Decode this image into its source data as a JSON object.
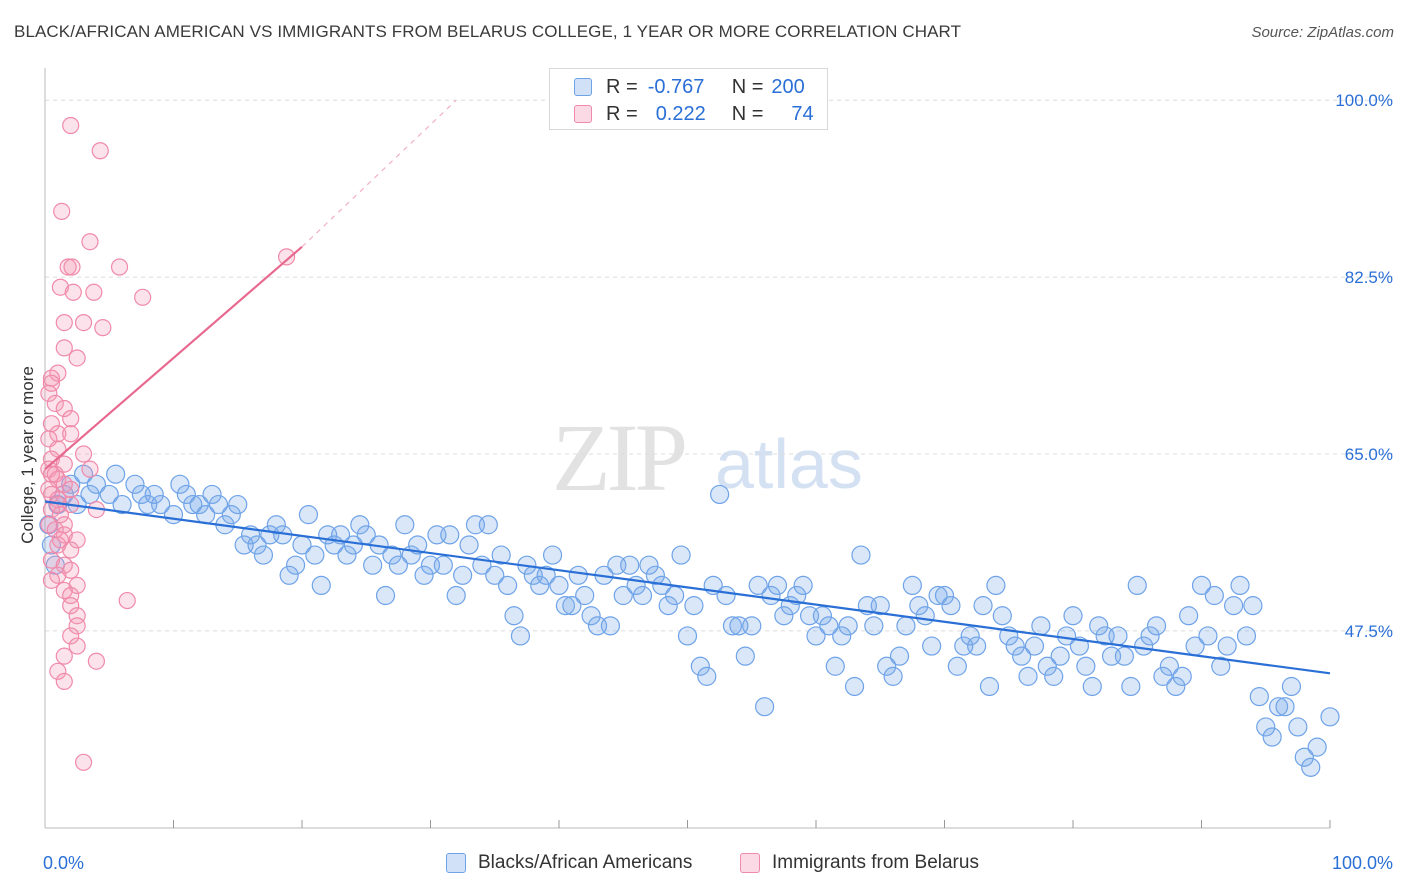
{
  "title": "BLACK/AFRICAN AMERICAN VS IMMIGRANTS FROM BELARUS COLLEGE, 1 YEAR OR MORE CORRELATION CHART",
  "source": "Source: ZipAtlas.com",
  "watermark": {
    "zip": "ZIP",
    "atlas": "atlas"
  },
  "colors": {
    "blue": "#6fa3e8",
    "blue_fill": "rgba(120,170,235,0.28)",
    "blue_line": "#2a6fd6",
    "pink": "#f08aaa",
    "pink_fill": "rgba(244,150,180,0.28)",
    "pink_line": "#e8698f",
    "axis_label": "#2a6fd6",
    "grid": "#dcdcdc"
  },
  "legend_top": {
    "rows": [
      {
        "r_label": "R =",
        "r_value": "-0.767",
        "n_label": "N =",
        "n_value": "200"
      },
      {
        "r_label": "R =",
        "r_value": "0.222",
        "n_label": "N =",
        "n_value": "74"
      }
    ]
  },
  "legend_bottom": [
    "Blacks/African Americans",
    "Immigrants from Belarus"
  ],
  "chart_data": {
    "type": "scatter",
    "title": "BLACK/AFRICAN AMERICAN VS IMMIGRANTS FROM BELARUS COLLEGE, 1 YEAR OR MORE CORRELATION CHART",
    "xlabel": "",
    "ylabel": "College, 1 year or more",
    "xlim": [
      0,
      100
    ],
    "ylim": [
      28,
      102
    ],
    "x_tick_labels": [
      "0.0%",
      "100.0%"
    ],
    "y_ticks": [
      47.5,
      65.0,
      82.5,
      100.0
    ],
    "y_tick_labels": [
      "47.5%",
      "65.0%",
      "82.5%",
      "100.0%"
    ],
    "grid": "horizontal dashed",
    "legend_position": "top-center",
    "series": [
      {
        "name": "Blacks/African Americans",
        "R": -0.767,
        "N": 200,
        "trend": [
          [
            0,
            60.3
          ],
          [
            100,
            43.3
          ]
        ],
        "points": [
          [
            0.3,
            58
          ],
          [
            0.5,
            56
          ],
          [
            0.8,
            54
          ],
          [
            1.0,
            60
          ],
          [
            1.5,
            61
          ],
          [
            2.0,
            62
          ],
          [
            2.5,
            60
          ],
          [
            3,
            63
          ],
          [
            3.5,
            61
          ],
          [
            4,
            62
          ],
          [
            5,
            61
          ],
          [
            5.5,
            63
          ],
          [
            6,
            60
          ],
          [
            7,
            62
          ],
          [
            7.5,
            61
          ],
          [
            8,
            60
          ],
          [
            8.5,
            61
          ],
          [
            9,
            60
          ],
          [
            10,
            59
          ],
          [
            10.5,
            62
          ],
          [
            11,
            61
          ],
          [
            11.5,
            60
          ],
          [
            12,
            60
          ],
          [
            12.5,
            59
          ],
          [
            13,
            61
          ],
          [
            13.5,
            60
          ],
          [
            14,
            58
          ],
          [
            14.5,
            59
          ],
          [
            15,
            60
          ],
          [
            15.5,
            56
          ],
          [
            16,
            57
          ],
          [
            16.5,
            56
          ],
          [
            17,
            55
          ],
          [
            17.5,
            57
          ],
          [
            18,
            58
          ],
          [
            18.5,
            57
          ],
          [
            19,
            53
          ],
          [
            19.5,
            54
          ],
          [
            20,
            56
          ],
          [
            20.5,
            59
          ],
          [
            21,
            55
          ],
          [
            21.5,
            52
          ],
          [
            22,
            57
          ],
          [
            22.5,
            56
          ],
          [
            23,
            57
          ],
          [
            23.5,
            55
          ],
          [
            24,
            56
          ],
          [
            24.5,
            58
          ],
          [
            25,
            57
          ],
          [
            25.5,
            54
          ],
          [
            26,
            56
          ],
          [
            26.5,
            51
          ],
          [
            27,
            55
          ],
          [
            27.5,
            54
          ],
          [
            28,
            58
          ],
          [
            28.5,
            55
          ],
          [
            29,
            56
          ],
          [
            29.5,
            53
          ],
          [
            30,
            54
          ],
          [
            30.5,
            57
          ],
          [
            31,
            54
          ],
          [
            31.5,
            57
          ],
          [
            32,
            51
          ],
          [
            32.5,
            53
          ],
          [
            33,
            56
          ],
          [
            33.5,
            58
          ],
          [
            34,
            54
          ],
          [
            34.5,
            58
          ],
          [
            35,
            53
          ],
          [
            35.5,
            55
          ],
          [
            36,
            52
          ],
          [
            36.5,
            49
          ],
          [
            37,
            47
          ],
          [
            37.5,
            54
          ],
          [
            38,
            53
          ],
          [
            38.5,
            52
          ],
          [
            39,
            53
          ],
          [
            39.5,
            55
          ],
          [
            40,
            52
          ],
          [
            40.5,
            50
          ],
          [
            41,
            50
          ],
          [
            41.5,
            53
          ],
          [
            42,
            51
          ],
          [
            42.5,
            49
          ],
          [
            43,
            48
          ],
          [
            43.5,
            53
          ],
          [
            44,
            48
          ],
          [
            44.5,
            54
          ],
          [
            45,
            51
          ],
          [
            45.5,
            54
          ],
          [
            46,
            52
          ],
          [
            46.5,
            51
          ],
          [
            47,
            54
          ],
          [
            47.5,
            53
          ],
          [
            48,
            52
          ],
          [
            48.5,
            50
          ],
          [
            49,
            51
          ],
          [
            49.5,
            55
          ],
          [
            50,
            47
          ],
          [
            50.5,
            50
          ],
          [
            51,
            44
          ],
          [
            51.5,
            43
          ],
          [
            52,
            52
          ],
          [
            52.5,
            61
          ],
          [
            53,
            51
          ],
          [
            53.5,
            48
          ],
          [
            54,
            48
          ],
          [
            54.5,
            45
          ],
          [
            55,
            48
          ],
          [
            55.5,
            52
          ],
          [
            56,
            40
          ],
          [
            56.5,
            51
          ],
          [
            57,
            52
          ],
          [
            57.5,
            49
          ],
          [
            58,
            50
          ],
          [
            58.5,
            51
          ],
          [
            59,
            52
          ],
          [
            59.5,
            49
          ],
          [
            60,
            47
          ],
          [
            60.5,
            49
          ],
          [
            61,
            48
          ],
          [
            61.5,
            44
          ],
          [
            62,
            47
          ],
          [
            62.5,
            48
          ],
          [
            63,
            42
          ],
          [
            63.5,
            55
          ],
          [
            64,
            50
          ],
          [
            64.5,
            48
          ],
          [
            65,
            50
          ],
          [
            65.5,
            44
          ],
          [
            66,
            43
          ],
          [
            66.5,
            45
          ],
          [
            67,
            48
          ],
          [
            67.5,
            52
          ],
          [
            68,
            50
          ],
          [
            68.5,
            49
          ],
          [
            69,
            46
          ],
          [
            69.5,
            51
          ],
          [
            70,
            51
          ],
          [
            70.5,
            50
          ],
          [
            71,
            44
          ],
          [
            71.5,
            46
          ],
          [
            72,
            47
          ],
          [
            72.5,
            46
          ],
          [
            73,
            50
          ],
          [
            73.5,
            42
          ],
          [
            74,
            52
          ],
          [
            74.5,
            49
          ],
          [
            75,
            47
          ],
          [
            75.5,
            46
          ],
          [
            76,
            45
          ],
          [
            76.5,
            43
          ],
          [
            77,
            46
          ],
          [
            77.5,
            48
          ],
          [
            78,
            44
          ],
          [
            78.5,
            43
          ],
          [
            79,
            45
          ],
          [
            79.5,
            47
          ],
          [
            80,
            49
          ],
          [
            80.5,
            46
          ],
          [
            81,
            44
          ],
          [
            81.5,
            42
          ],
          [
            82,
            48
          ],
          [
            82.5,
            47
          ],
          [
            83,
            45
          ],
          [
            83.5,
            47
          ],
          [
            84,
            45
          ],
          [
            84.5,
            42
          ],
          [
            85,
            52
          ],
          [
            85.5,
            46
          ],
          [
            86,
            47
          ],
          [
            86.5,
            48
          ],
          [
            87,
            43
          ],
          [
            87.5,
            44
          ],
          [
            88,
            42
          ],
          [
            88.5,
            43
          ],
          [
            89,
            49
          ],
          [
            89.5,
            46
          ],
          [
            90,
            52
          ],
          [
            90.5,
            47
          ],
          [
            91,
            51
          ],
          [
            91.5,
            44
          ],
          [
            92,
            46
          ],
          [
            92.5,
            50
          ],
          [
            93,
            52
          ],
          [
            93.5,
            47
          ],
          [
            94,
            50
          ],
          [
            94.5,
            41
          ],
          [
            95,
            38
          ],
          [
            95.5,
            37
          ],
          [
            96,
            40
          ],
          [
            96.5,
            40
          ],
          [
            97,
            42
          ],
          [
            97.5,
            38
          ],
          [
            98,
            35
          ],
          [
            98.5,
            34
          ],
          [
            99,
            36
          ],
          [
            100,
            39
          ]
        ]
      },
      {
        "name": "Immigrants from Belarus",
        "R": 0.222,
        "N": 74,
        "trend": [
          [
            0,
            63.5
          ],
          [
            20,
            85.5
          ]
        ],
        "trend_dashed_extension": [
          [
            20,
            85.5
          ],
          [
            32,
            100
          ]
        ],
        "points": [
          [
            2.0,
            97.5
          ],
          [
            4.3,
            95.0
          ],
          [
            1.3,
            89.0
          ],
          [
            3.5,
            86.0
          ],
          [
            1.8,
            83.5
          ],
          [
            2.1,
            83.5
          ],
          [
            5.8,
            83.5
          ],
          [
            1.2,
            81.5
          ],
          [
            2.2,
            81.0
          ],
          [
            3.8,
            81.0
          ],
          [
            7.6,
            80.5
          ],
          [
            1.5,
            78.0
          ],
          [
            3.0,
            78.0
          ],
          [
            4.5,
            77.5
          ],
          [
            1.5,
            75.5
          ],
          [
            2.5,
            74.5
          ],
          [
            1.0,
            73.0
          ],
          [
            0.5,
            72.0
          ],
          [
            0.3,
            71.0
          ],
          [
            0.8,
            70.0
          ],
          [
            1.5,
            69.5
          ],
          [
            2.0,
            68.5
          ],
          [
            0.5,
            68.0
          ],
          [
            1.0,
            67.0
          ],
          [
            2.0,
            67.0
          ],
          [
            0.3,
            66.5
          ],
          [
            1.0,
            65.5
          ],
          [
            3.0,
            65.0
          ],
          [
            0.5,
            64.5
          ],
          [
            1.5,
            64.0
          ],
          [
            0.3,
            63.5
          ],
          [
            0.5,
            63.0
          ],
          [
            1.0,
            62.5
          ],
          [
            1.5,
            62.0
          ],
          [
            0.3,
            61.5
          ],
          [
            0.5,
            61.0
          ],
          [
            1.0,
            60.5
          ],
          [
            2.0,
            60.0
          ],
          [
            0.5,
            59.5
          ],
          [
            1.2,
            59.0
          ],
          [
            0.3,
            58.0
          ],
          [
            0.8,
            57.5
          ],
          [
            1.5,
            57.0
          ],
          [
            2.5,
            56.5
          ],
          [
            1.0,
            56.0
          ],
          [
            2.0,
            55.5
          ],
          [
            0.5,
            54.5
          ],
          [
            1.5,
            54.0
          ],
          [
            2.0,
            53.5
          ],
          [
            1.0,
            53.0
          ],
          [
            0.5,
            52.5
          ],
          [
            2.5,
            52.0
          ],
          [
            1.5,
            51.5
          ],
          [
            2.0,
            51.0
          ],
          [
            6.4,
            50.5
          ],
          [
            2.0,
            50.0
          ],
          [
            2.5,
            49.0
          ],
          [
            2.5,
            48.0
          ],
          [
            2.0,
            47.0
          ],
          [
            2.5,
            46.0
          ],
          [
            1.5,
            45.0
          ],
          [
            4.0,
            44.5
          ],
          [
            1.0,
            43.5
          ],
          [
            1.5,
            42.5
          ],
          [
            3.0,
            34.5
          ],
          [
            18.8,
            84.5
          ],
          [
            0.5,
            72.5
          ],
          [
            1.0,
            60.0
          ],
          [
            0.8,
            63.0
          ],
          [
            1.5,
            58.0
          ],
          [
            2.0,
            61.5
          ],
          [
            3.5,
            63.5
          ],
          [
            4.0,
            59.5
          ],
          [
            1.2,
            56.5
          ]
        ]
      }
    ]
  }
}
